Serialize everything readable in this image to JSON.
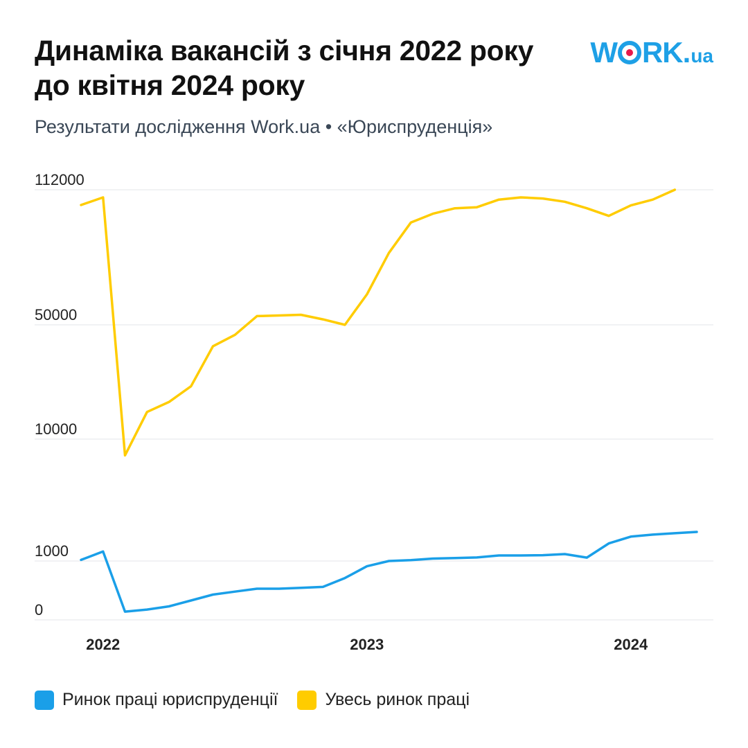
{
  "header": {
    "title": "Динаміка вакансій з січня 2022 року\nдо квітня 2024 року",
    "subtitle": "Результати дослідження Work.ua • «Юриспруденція»"
  },
  "logo": {
    "w": "W",
    "rk": "RK",
    "dot": ".",
    "ua": "ua",
    "color": "#1ea0e6",
    "dot_color": "#e6194b"
  },
  "chart_data": {
    "type": "line",
    "title": "Динаміка вакансій з січня 2022 року до квітня 2024 року",
    "subtitle": "Результати дослідження Work.ua • «Юриспруденція»",
    "y_scale": "piecewise (0–1000, 1000–10000, 10000–50000, 50000–112000)",
    "yticks": [
      0,
      1000,
      10000,
      50000,
      112000
    ],
    "ylim": [
      0,
      112000
    ],
    "x_tick_labels": [
      "2022",
      "2023",
      "2024"
    ],
    "x_tick_positions": [
      "2022-01",
      "2023-01",
      "2024-01"
    ],
    "x": [
      "2021-12",
      "2022-01",
      "2022-02",
      "2022-03",
      "2022-04",
      "2022-05",
      "2022-06",
      "2022-07",
      "2022-08",
      "2022-09",
      "2022-10",
      "2022-11",
      "2022-12",
      "2023-01",
      "2023-02",
      "2023-03",
      "2023-04",
      "2023-05",
      "2023-06",
      "2023-07",
      "2023-08",
      "2023-09",
      "2023-10",
      "2023-11",
      "2023-12",
      "2024-01",
      "2024-02",
      "2024-03",
      "2024-04"
    ],
    "grid": true,
    "legend_position": "bottom-left",
    "series": [
      {
        "name": "Ринок праці юриспруденції",
        "color": "#1a9fe8",
        "values": [
          1080,
          1700,
          140,
          175,
          230,
          330,
          430,
          480,
          530,
          530,
          545,
          560,
          710,
          910,
          1000,
          1060,
          1180,
          1220,
          1260,
          1410,
          1410,
          1430,
          1510,
          1250,
          2300,
          2800,
          2950,
          3050,
          3150
        ]
      },
      {
        "name": "Увесь ринок праці",
        "color": "#ffcc00",
        "values": [
          105000,
          108500,
          8800,
          19500,
          23000,
          28500,
          42500,
          46500,
          54000,
          54300,
          54600,
          52500,
          50000,
          64000,
          83000,
          97000,
          101000,
          103500,
          104000,
          107500,
          108500,
          108000,
          106500,
          103500,
          100000,
          104800,
          107500,
          112000,
          null
        ]
      }
    ]
  },
  "legend": [
    {
      "label": "Ринок праці юриспруденції",
      "color": "#1a9fe8"
    },
    {
      "label": "Увесь ринок праці",
      "color": "#ffcc00"
    }
  ]
}
